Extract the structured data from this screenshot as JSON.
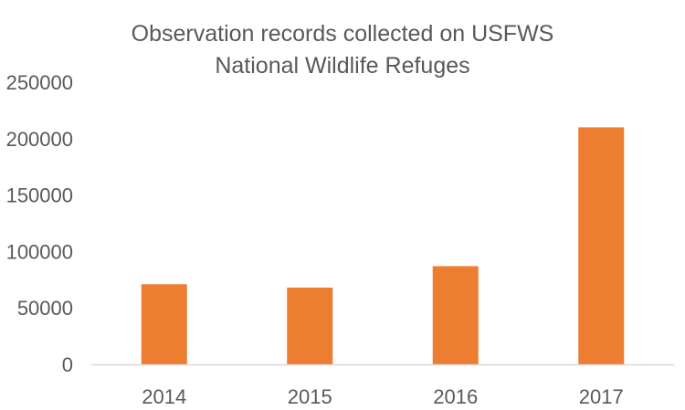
{
  "chart_data": {
    "type": "bar",
    "title_lines": [
      "Observation records collected on USFWS",
      "National Wildlife Refuges"
    ],
    "categories": [
      "2014",
      "2015",
      "2016",
      "2017"
    ],
    "values": [
      71000,
      68000,
      87000,
      210000
    ],
    "ylim": [
      0,
      250000
    ],
    "y_ticks": [
      250000,
      200000,
      150000,
      100000,
      50000,
      0
    ],
    "y_tick_labels": [
      "250000",
      "200000",
      "150000",
      "100000",
      "50000",
      "0"
    ],
    "xlabel": "",
    "ylabel": "",
    "grid": false,
    "legend": "none",
    "bar_color": "#ED7D31",
    "axis_color": "#D9D9D9",
    "text_color": "#595959"
  }
}
